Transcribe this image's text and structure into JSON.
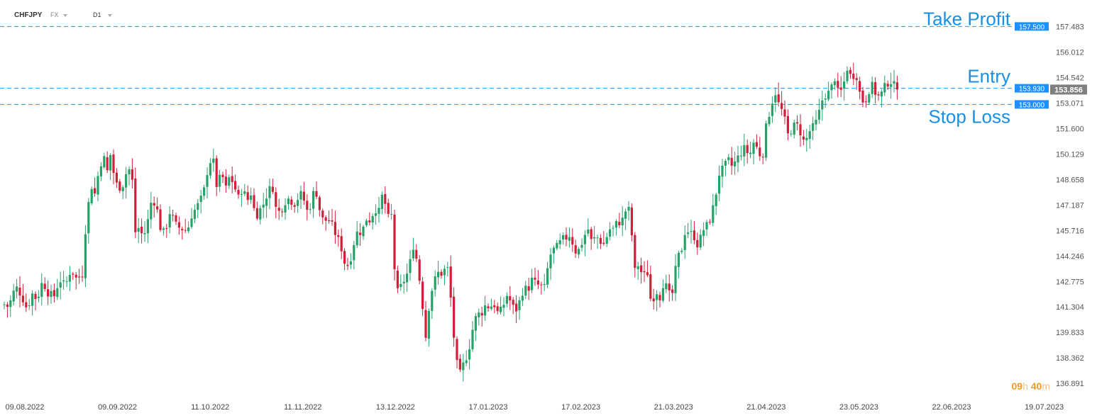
{
  "toolbar": {
    "symbol": "CHFJPY",
    "type": "FX",
    "timeframe": "D1"
  },
  "timer": {
    "hours": "09",
    "hours_unit": "h",
    "minutes": "40",
    "minutes_unit": "m"
  },
  "colors": {
    "up": "#26a269",
    "down": "#d11f3a",
    "level_line": "#2196f3",
    "level_text": "#1a8fe0",
    "current_price_bg": "#7f7f7f",
    "timer": "#f29a1f"
  },
  "chart_data": {
    "type": "candlestick",
    "ylim": [
      136.2,
      158.7
    ],
    "yticks": [
      "157.483",
      "156.012",
      "154.542",
      "153.071",
      "151.600",
      "150.129",
      "148.658",
      "147.187",
      "145.716",
      "144.246",
      "142.775",
      "141.304",
      "139.833",
      "138.362",
      "136.891"
    ],
    "xticks": [
      "09.08.2022",
      "09.09.2022",
      "11.10.2022",
      "11.11.2022",
      "13.12.2022",
      "17.01.2023",
      "17.02.2023",
      "21.03.2023",
      "21.04.2023",
      "23.05.2023",
      "22.06.2023",
      "19.07.2023"
    ],
    "levels": [
      {
        "label": "Take Profit",
        "value": 157.5,
        "price_tag": "157.500"
      },
      {
        "label": "Entry",
        "value": 153.93,
        "price_tag": "153.930"
      },
      {
        "label": "Stop Loss",
        "value": 153.0,
        "price_tag": "153.000"
      }
    ],
    "current_price": {
      "value": 153.856,
      "label": "153.856"
    },
    "close_path": [
      [
        0,
        141.6
      ],
      [
        12,
        141.3
      ],
      [
        22,
        142.5
      ],
      [
        30,
        142.0
      ],
      [
        38,
        141.2
      ],
      [
        46,
        142.1
      ],
      [
        52,
        141.7
      ],
      [
        60,
        142.8
      ],
      [
        68,
        142.1
      ],
      [
        76,
        141.9
      ],
      [
        84,
        142.9
      ],
      [
        92,
        142.5
      ],
      [
        100,
        143.5
      ],
      [
        108,
        142.9
      ],
      [
        116,
        143.2
      ],
      [
        120,
        145.6
      ],
      [
        128,
        148.4
      ],
      [
        134,
        147.8
      ],
      [
        140,
        149.4
      ],
      [
        146,
        150.0
      ],
      [
        152,
        149.0
      ],
      [
        156,
        150.2
      ],
      [
        162,
        148.5
      ],
      [
        168,
        148.2
      ],
      [
        174,
        148.4
      ],
      [
        180,
        149.4
      ],
      [
        186,
        148.9
      ],
      [
        190,
        145.6
      ],
      [
        196,
        145.9
      ],
      [
        202,
        145.3
      ],
      [
        208,
        146.2
      ],
      [
        214,
        147.6
      ],
      [
        220,
        147.2
      ],
      [
        226,
        145.9
      ],
      [
        232,
        145.5
      ],
      [
        240,
        146.9
      ],
      [
        246,
        146.1
      ],
      [
        252,
        145.9
      ],
      [
        258,
        145.8
      ],
      [
        264,
        145.7
      ],
      [
        270,
        146.6
      ],
      [
        276,
        147.0
      ],
      [
        282,
        147.4
      ],
      [
        288,
        148.1
      ],
      [
        294,
        149.6
      ],
      [
        300,
        149.9
      ],
      [
        306,
        148.1
      ],
      [
        312,
        149.1
      ],
      [
        318,
        148.1
      ],
      [
        324,
        148.9
      ],
      [
        330,
        148.3
      ],
      [
        336,
        147.6
      ],
      [
        342,
        148.2
      ],
      [
        348,
        147.4
      ],
      [
        354,
        147.9
      ],
      [
        360,
        146.5
      ],
      [
        366,
        146.9
      ],
      [
        372,
        147.3
      ],
      [
        378,
        148.0
      ],
      [
        384,
        148.3
      ],
      [
        390,
        146.7
      ],
      [
        396,
        146.9
      ],
      [
        402,
        147.4
      ],
      [
        408,
        147.6
      ],
      [
        414,
        147.2
      ],
      [
        420,
        147.6
      ],
      [
        426,
        147.9
      ],
      [
        432,
        146.8
      ],
      [
        438,
        147.2
      ],
      [
        444,
        148.3
      ],
      [
        450,
        147.0
      ],
      [
        456,
        146.2
      ],
      [
        462,
        146.4
      ],
      [
        468,
        146.0
      ],
      [
        474,
        145.4
      ],
      [
        480,
        144.9
      ],
      [
        486,
        143.8
      ],
      [
        492,
        143.7
      ],
      [
        498,
        144.9
      ],
      [
        504,
        145.7
      ],
      [
        510,
        145.6
      ],
      [
        516,
        146.4
      ],
      [
        522,
        146.3
      ],
      [
        528,
        147.0
      ],
      [
        534,
        146.8
      ],
      [
        540,
        148.0
      ],
      [
        546,
        146.4
      ],
      [
        552,
        146.6
      ],
      [
        558,
        142.0
      ],
      [
        564,
        142.4
      ],
      [
        570,
        142.9
      ],
      [
        576,
        143.4
      ],
      [
        582,
        144.9
      ],
      [
        588,
        143.9
      ],
      [
        594,
        142.0
      ],
      [
        600,
        139.6
      ],
      [
        606,
        141.9
      ],
      [
        612,
        142.8
      ],
      [
        618,
        143.3
      ],
      [
        624,
        143.2
      ],
      [
        630,
        143.8
      ],
      [
        636,
        141.5
      ],
      [
        642,
        138.3
      ],
      [
        648,
        137.4
      ],
      [
        654,
        138.1
      ],
      [
        660,
        138.7
      ],
      [
        666,
        140.0
      ],
      [
        672,
        140.9
      ],
      [
        678,
        140.9
      ],
      [
        684,
        141.4
      ],
      [
        690,
        141.3
      ],
      [
        696,
        141.5
      ],
      [
        702,
        140.9
      ],
      [
        708,
        141.2
      ],
      [
        714,
        142.0
      ],
      [
        720,
        141.6
      ],
      [
        726,
        141.0
      ],
      [
        732,
        141.6
      ],
      [
        738,
        142.4
      ],
      [
        744,
        142.3
      ],
      [
        750,
        142.9
      ],
      [
        756,
        142.6
      ],
      [
        762,
        142.5
      ],
      [
        768,
        142.4
      ],
      [
        774,
        144.2
      ],
      [
        780,
        144.6
      ],
      [
        786,
        144.8
      ],
      [
        792,
        145.2
      ],
      [
        798,
        145.3
      ],
      [
        804,
        145.5
      ],
      [
        810,
        144.5
      ],
      [
        816,
        144.6
      ],
      [
        822,
        145.2
      ],
      [
        828,
        145.9
      ],
      [
        834,
        145.0
      ],
      [
        840,
        145.4
      ],
      [
        846,
        145.1
      ],
      [
        852,
        144.9
      ],
      [
        858,
        145.8
      ],
      [
        864,
        145.8
      ],
      [
        870,
        146.2
      ],
      [
        876,
        146.2
      ],
      [
        882,
        146.9
      ],
      [
        888,
        146.9
      ],
      [
        894,
        143.3
      ],
      [
        900,
        143.8
      ],
      [
        906,
        143.0
      ],
      [
        912,
        143.4
      ],
      [
        918,
        141.4
      ],
      [
        924,
        142.3
      ],
      [
        930,
        141.9
      ],
      [
        936,
        142.9
      ],
      [
        942,
        142.0
      ],
      [
        948,
        142.1
      ],
      [
        954,
        144.1
      ],
      [
        960,
        144.5
      ],
      [
        966,
        145.8
      ],
      [
        972,
        145.6
      ],
      [
        978,
        145.4
      ],
      [
        984,
        144.8
      ],
      [
        990,
        145.7
      ],
      [
        996,
        146.0
      ],
      [
        1002,
        146.5
      ],
      [
        1008,
        147.6
      ],
      [
        1014,
        149.1
      ],
      [
        1020,
        149.3
      ],
      [
        1026,
        149.8
      ],
      [
        1032,
        149.4
      ],
      [
        1038,
        149.8
      ],
      [
        1044,
        150.2
      ],
      [
        1050,
        150.5
      ],
      [
        1056,
        150.0
      ],
      [
        1062,
        150.8
      ],
      [
        1068,
        150.4
      ],
      [
        1074,
        149.8
      ],
      [
        1080,
        151.8
      ],
      [
        1086,
        152.8
      ],
      [
        1092,
        153.8
      ],
      [
        1098,
        152.9
      ],
      [
        1104,
        152.5
      ],
      [
        1110,
        151.2
      ],
      [
        1116,
        151.6
      ],
      [
        1122,
        151.9
      ],
      [
        1128,
        151.4
      ],
      [
        1134,
        150.7
      ],
      [
        1140,
        151.4
      ],
      [
        1146,
        151.7
      ],
      [
        1152,
        152.1
      ],
      [
        1158,
        153.2
      ],
      [
        1164,
        153.6
      ],
      [
        1170,
        153.7
      ],
      [
        1176,
        154.6
      ],
      [
        1182,
        153.5
      ],
      [
        1188,
        154.0
      ],
      [
        1194,
        155.1
      ],
      [
        1200,
        154.5
      ],
      [
        1206,
        154.9
      ],
      [
        1212,
        153.6
      ],
      [
        1218,
        153.0
      ],
      [
        1224,
        153.8
      ],
      [
        1230,
        154.1
      ],
      [
        1236,
        153.4
      ],
      [
        1242,
        153.6
      ],
      [
        1248,
        154.1
      ],
      [
        1254,
        154.4
      ],
      [
        1260,
        154.1
      ],
      [
        1266,
        153.856
      ]
    ]
  }
}
